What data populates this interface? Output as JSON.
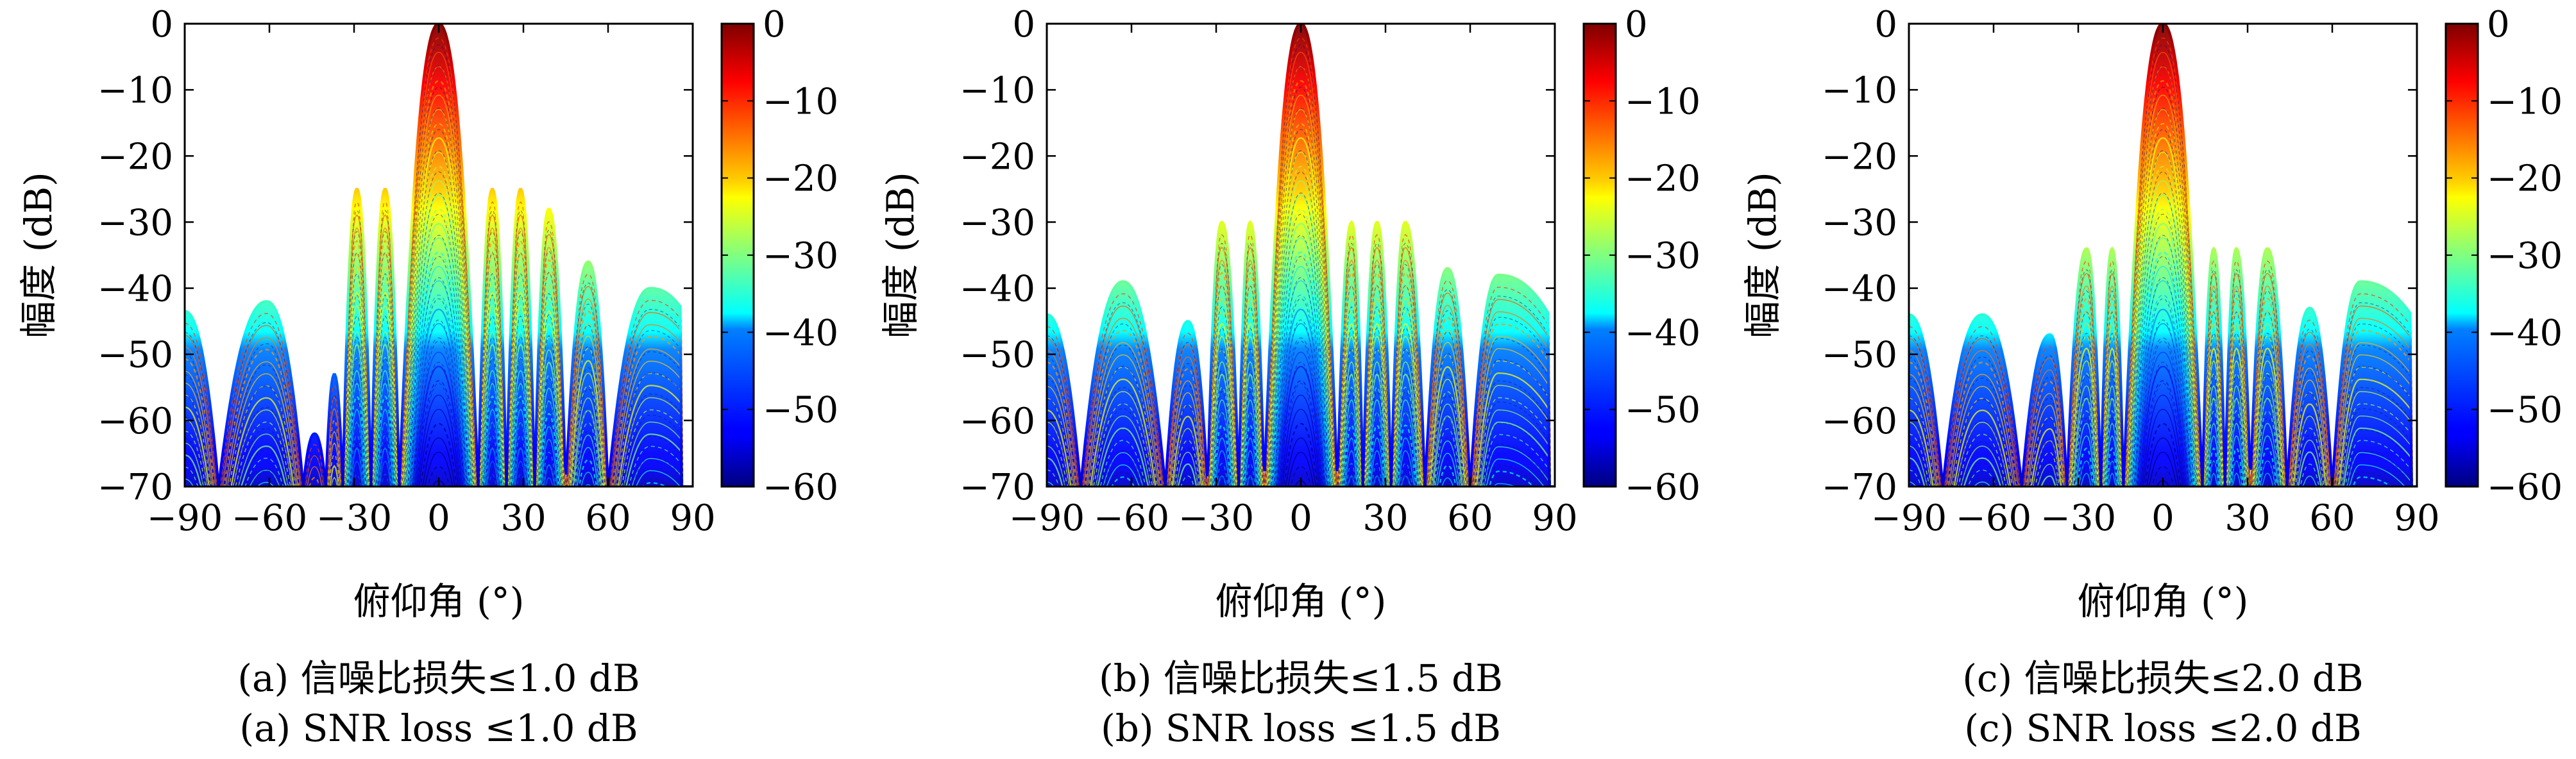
{
  "panels": [
    {
      "id": "a",
      "caption_cn": "(a) 信噪比损失≤1.0 dB",
      "caption_en": "(a) SNR loss ≤1.0 dB",
      "chart_data": {
        "type": "area",
        "xlabel": "俯仰角 (°)",
        "ylabel": "幅度 (dB)",
        "xlim": [
          -90,
          90
        ],
        "ylim": [
          -70,
          0
        ],
        "xticks": [
          -90,
          -60,
          -30,
          0,
          30,
          60,
          90
        ],
        "yticks": [
          0,
          -10,
          -20,
          -30,
          -40,
          -50,
          -60,
          -70
        ],
        "colorbar": {
          "colormap": "jet",
          "range": [
            -60,
            0
          ],
          "ticks": [
            0,
            -10,
            -20,
            -30,
            -40,
            -50,
            -60
          ]
        },
        "series": [
          {
            "lobes": [
              [
                -90,
                -43.5
              ],
              [
                -78,
                -70
              ],
              [
                -61,
                -42
              ],
              [
                -48,
                -70
              ],
              [
                -44,
                -62
              ],
              [
                -40,
                -70
              ],
              [
                -37,
                -53
              ],
              [
                -34,
                -70
              ],
              [
                -29,
                -25
              ],
              [
                -24,
                -70
              ],
              [
                -19,
                -25
              ],
              [
                -14,
                -70
              ],
              [
                0,
                0
              ],
              [
                14,
                -70
              ],
              [
                19,
                -25
              ],
              [
                24,
                -70
              ],
              [
                29,
                -25
              ],
              [
                34,
                -70
              ],
              [
                39,
                -28
              ],
              [
                45,
                -70
              ],
              [
                53,
                -36
              ],
              [
                60,
                -70
              ],
              [
                75,
                -40
              ],
              [
                86,
                -43
              ]
            ]
          }
        ]
      }
    },
    {
      "id": "b",
      "caption_cn": "(b) 信噪比损失≤1.5 dB",
      "caption_en": "(b) SNR loss ≤1.5 dB",
      "chart_data": {
        "type": "area",
        "xlabel": "俯仰角 (°)",
        "ylabel": "幅度 (dB)",
        "xlim": [
          -90,
          90
        ],
        "ylim": [
          -70,
          0
        ],
        "xticks": [
          -90,
          -60,
          -30,
          0,
          30,
          60,
          90
        ],
        "yticks": [
          0,
          -10,
          -20,
          -30,
          -40,
          -50,
          -60,
          -70
        ],
        "colorbar": {
          "colormap": "jet",
          "range": [
            -60,
            0
          ],
          "ticks": [
            0,
            -10,
            -20,
            -30,
            -40,
            -50,
            -60
          ]
        },
        "series": [
          {
            "lobes": [
              [
                -90,
                -44
              ],
              [
                -78,
                -70
              ],
              [
                -63,
                -39
              ],
              [
                -48,
                -70
              ],
              [
                -40,
                -45
              ],
              [
                -33,
                -70
              ],
              [
                -28,
                -30
              ],
              [
                -22,
                -70
              ],
              [
                -18,
                -30
              ],
              [
                -13,
                -70
              ],
              [
                0,
                0
              ],
              [
                13,
                -70
              ],
              [
                18,
                -30
              ],
              [
                22,
                -70
              ],
              [
                27,
                -30
              ],
              [
                32,
                -70
              ],
              [
                37,
                -30
              ],
              [
                44,
                -70
              ],
              [
                52,
                -37
              ],
              [
                60,
                -70
              ],
              [
                70,
                -38
              ],
              [
                88,
                -44
              ]
            ]
          }
        ]
      }
    },
    {
      "id": "c",
      "caption_cn": "(c) 信噪比损失≤2.0 dB",
      "caption_en": "(c) SNR loss ≤2.0 dB",
      "chart_data": {
        "type": "area",
        "xlabel": "俯仰角 (°)",
        "ylabel": "幅度 (dB)",
        "xlim": [
          -90,
          90
        ],
        "ylim": [
          -70,
          0
        ],
        "xticks": [
          -90,
          -60,
          -30,
          0,
          30,
          60,
          90
        ],
        "yticks": [
          0,
          -10,
          -20,
          -30,
          -40,
          -50,
          -60,
          -70
        ],
        "colorbar": {
          "colormap": "jet",
          "range": [
            -60,
            0
          ],
          "ticks": [
            0,
            -10,
            -20,
            -30,
            -40,
            -50,
            -60
          ]
        },
        "series": [
          {
            "lobes": [
              [
                -90,
                -44
              ],
              [
                -78,
                -70
              ],
              [
                -64,
                -44
              ],
              [
                -50,
                -70
              ],
              [
                -40,
                -47
              ],
              [
                -34,
                -70
              ],
              [
                -27,
                -34
              ],
              [
                -22,
                -70
              ],
              [
                -18,
                -34
              ],
              [
                -14,
                -70
              ],
              [
                0,
                0
              ],
              [
                14,
                -70
              ],
              [
                18,
                -34
              ],
              [
                22,
                -70
              ],
              [
                26,
                -34
              ],
              [
                31,
                -70
              ],
              [
                37,
                -34
              ],
              [
                44,
                -70
              ],
              [
                52,
                -43
              ],
              [
                60,
                -70
              ],
              [
                70,
                -39
              ],
              [
                88,
                -44
              ]
            ]
          }
        ]
      }
    }
  ]
}
